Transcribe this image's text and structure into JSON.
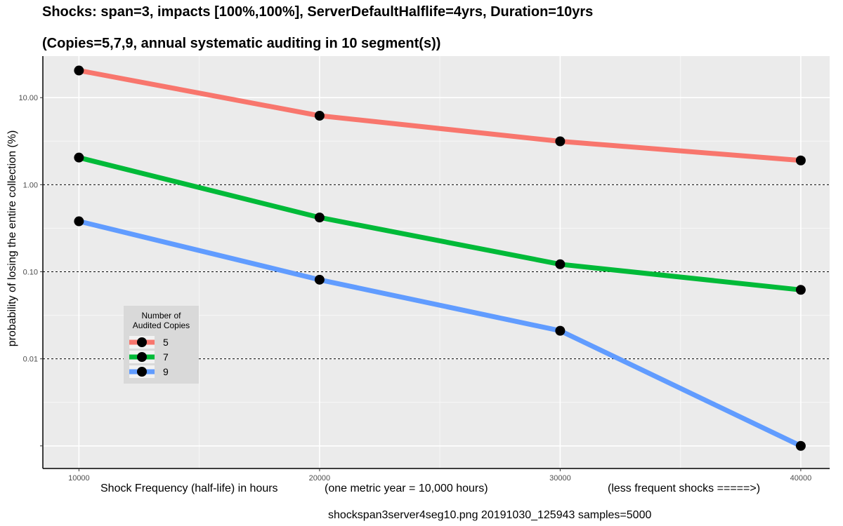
{
  "title": "Shocks: span=3, impacts [100%,100%], ServerDefaultHalflife=4yrs, Duration=10yrs",
  "subtitle": "(Copies=5,7,9, annual systematic auditing in 10 segment(s))",
  "xlabel_parts": [
    "Shock Frequency (half-life) in hours",
    "(one metric year = 10,000 hours)",
    "(less frequent shocks =====>)"
  ],
  "footer": "shockspan3server4seg10.png   20191030_125943   samples=5000",
  "chart_data": {
    "type": "line",
    "title": "Shocks: span=3, impacts [100%,100%], ServerDefaultHalflife=4yrs, Duration=10yrs",
    "subtitle": "(Copies=5,7,9, annual systematic auditing in 10 segment(s))",
    "ylabel": "probability of losing the entire collection (%)",
    "y_scale": "log10",
    "ylim": [
      0.00055,
      30
    ],
    "xlim": [
      8500,
      41200
    ],
    "x": [
      10000,
      20000,
      30000,
      40000
    ],
    "x_ticks": [
      "10000",
      "20000",
      "30000",
      "40000"
    ],
    "y_ticks": [
      {
        "value": 0.001,
        "label": ""
      },
      {
        "value": 0.01,
        "label": "0.01"
      },
      {
        "value": 0.1,
        "label": "0.10"
      },
      {
        "value": 1,
        "label": "1.00"
      },
      {
        "value": 10,
        "label": "10.00"
      }
    ],
    "reference_lines": [
      0.01,
      0.1,
      1
    ],
    "grid": true,
    "legend": {
      "title": "Number of\nAudited Copies",
      "placement": "left-center"
    },
    "series": [
      {
        "name": "5",
        "color": "#f8766d",
        "values": [
          20.5,
          6.2,
          3.15,
          1.9
        ]
      },
      {
        "name": "7",
        "color": "#00ba38",
        "values": [
          2.05,
          0.42,
          0.122,
          0.062
        ]
      },
      {
        "name": "9",
        "color": "#619cff",
        "values": [
          0.38,
          0.081,
          0.021,
          0.001
        ]
      }
    ]
  }
}
